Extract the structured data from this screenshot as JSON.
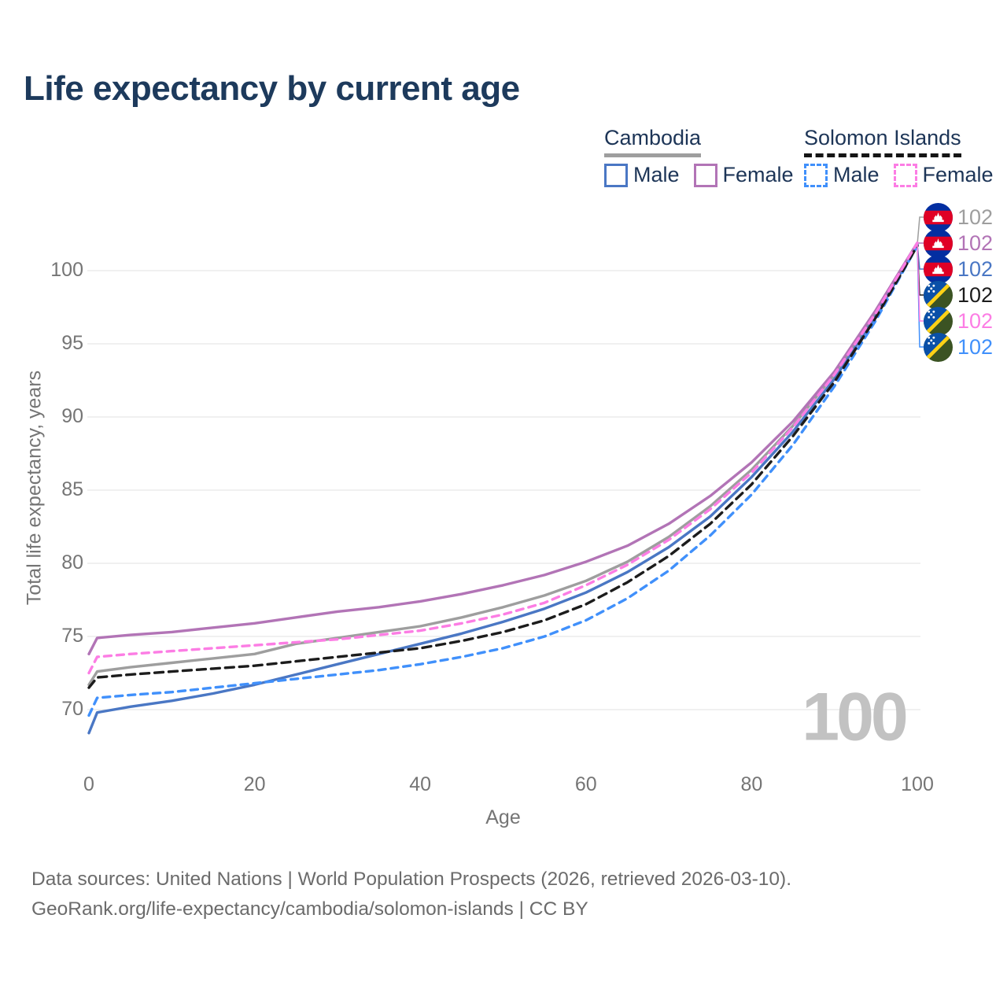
{
  "header": {
    "title": "Life expectancy by current age"
  },
  "legend": {
    "groups": [
      {
        "key": "cambodia",
        "label": "Cambodia",
        "style": "solid",
        "underline_color": "#9e9e9e",
        "items": [
          {
            "label": "Male",
            "color": "#4a77c4",
            "dashed": false
          },
          {
            "label": "Female",
            "color": "#b274b6",
            "dashed": false
          }
        ]
      },
      {
        "key": "solomon-islands",
        "label": "Solomon Islands",
        "style": "dashed",
        "underline_color": "#151515",
        "items": [
          {
            "label": "Male",
            "color": "#4090fb",
            "dashed": true
          },
          {
            "label": "Female",
            "color": "#fc7de4",
            "dashed": true
          }
        ]
      }
    ]
  },
  "chart_data": {
    "type": "line",
    "title": "Life expectancy by current age",
    "xlabel": "Age",
    "ylabel": "Total life expectancy, years",
    "xlim": [
      0,
      100
    ],
    "ylim": [
      67,
      103
    ],
    "x_ticks": [
      0,
      20,
      40,
      60,
      80,
      100
    ],
    "y_ticks": [
      70,
      75,
      80,
      85,
      90,
      95,
      100
    ],
    "grid": "horizontal-only",
    "legend_position": "top-right",
    "x": [
      0,
      1,
      5,
      10,
      15,
      20,
      25,
      30,
      35,
      40,
      45,
      50,
      55,
      60,
      65,
      70,
      75,
      80,
      85,
      90,
      95,
      100
    ],
    "series": [
      {
        "key": "cambodia-total",
        "name": "Cambodia",
        "sex": "Both sexes",
        "color": "#9e9e9e",
        "line": "solid",
        "dasharray": "",
        "label_row": 0,
        "end_label": "102",
        "values": [
          71.7,
          72.6,
          72.9,
          73.2,
          73.5,
          73.8,
          74.5,
          74.9,
          75.3,
          75.7,
          76.3,
          77.0,
          77.8,
          78.8,
          80.1,
          81.8,
          83.9,
          86.4,
          89.4,
          92.9,
          97.1,
          101.8
        ]
      },
      {
        "key": "cambodia-male",
        "name": "Cambodia",
        "sex": "Male",
        "color": "#4a77c4",
        "line": "solid",
        "dasharray": "",
        "label_row": 2,
        "end_label": "102",
        "values": [
          68.4,
          69.8,
          70.2,
          70.6,
          71.1,
          71.7,
          72.4,
          73.1,
          73.8,
          74.5,
          75.2,
          76.0,
          76.9,
          78.0,
          79.4,
          81.1,
          83.2,
          85.9,
          89.0,
          92.6,
          96.9,
          101.8
        ]
      },
      {
        "key": "cambodia-female",
        "name": "Cambodia",
        "sex": "Female",
        "color": "#b274b6",
        "line": "solid",
        "dasharray": "",
        "label_row": 1,
        "end_label": "102",
        "values": [
          73.8,
          74.9,
          75.1,
          75.3,
          75.6,
          75.9,
          76.3,
          76.7,
          77.0,
          77.4,
          77.9,
          78.5,
          79.2,
          80.1,
          81.2,
          82.7,
          84.6,
          86.9,
          89.7,
          93.1,
          97.3,
          101.9
        ]
      },
      {
        "key": "solomon-islands-male",
        "name": "Solomon Islands",
        "sex": "Male",
        "color": "#4090fb",
        "line": "dashed",
        "dasharray": "9 7",
        "label_row": 5,
        "end_label": "102",
        "values": [
          69.6,
          70.8,
          71.0,
          71.2,
          71.5,
          71.8,
          72.1,
          72.4,
          72.7,
          73.1,
          73.6,
          74.2,
          75.0,
          76.1,
          77.6,
          79.5,
          81.9,
          84.7,
          88.1,
          92.1,
          96.6,
          101.7
        ]
      },
      {
        "key": "solomon-islands-total",
        "name": "Solomon Islands",
        "sex": "Both sexes",
        "color": "#1c1c1c",
        "line": "dashed",
        "dasharray": "11 7",
        "label_row": 3,
        "end_label": "102",
        "values": [
          71.5,
          72.2,
          72.4,
          72.6,
          72.8,
          73.0,
          73.3,
          73.6,
          73.9,
          74.2,
          74.7,
          75.3,
          76.1,
          77.2,
          78.7,
          80.5,
          82.7,
          85.4,
          88.7,
          92.4,
          96.8,
          101.7
        ]
      },
      {
        "key": "solomon-islands-female",
        "name": "Solomon Islands",
        "sex": "Female",
        "color": "#fc7de4",
        "line": "dashed",
        "dasharray": "9 7",
        "label_row": 4,
        "end_label": "102",
        "values": [
          72.5,
          73.6,
          73.8,
          74.0,
          74.2,
          74.4,
          74.6,
          74.8,
          75.1,
          75.4,
          75.9,
          76.5,
          77.3,
          78.5,
          79.9,
          81.6,
          83.7,
          86.2,
          89.3,
          92.9,
          97.1,
          101.9
        ]
      }
    ]
  },
  "right_labels": [
    {
      "flag": "cambodia",
      "label": "102",
      "color": "#9e9e9e",
      "series": "cambodia-total"
    },
    {
      "flag": "cambodia",
      "label": "102",
      "color": "#b274b6",
      "series": "cambodia-female"
    },
    {
      "flag": "cambodia",
      "label": "102",
      "color": "#4a77c4",
      "series": "cambodia-male"
    },
    {
      "flag": "solomon-islands",
      "label": "102",
      "color": "#1c1c1c",
      "series": "solomon-islands-total"
    },
    {
      "flag": "solomon-islands",
      "label": "102",
      "color": "#fc7de4",
      "series": "solomon-islands-female"
    },
    {
      "flag": "solomon-islands",
      "label": "102",
      "color": "#4090fb",
      "series": "solomon-islands-male"
    }
  ],
  "watermark": "100",
  "footer": {
    "line1": "Data sources: United Nations | World Population Prospects (2026, retrieved 2026-03-10).",
    "line2": "GeoRank.org/life-expectancy/cambodia/solomon-islands | CC BY"
  }
}
